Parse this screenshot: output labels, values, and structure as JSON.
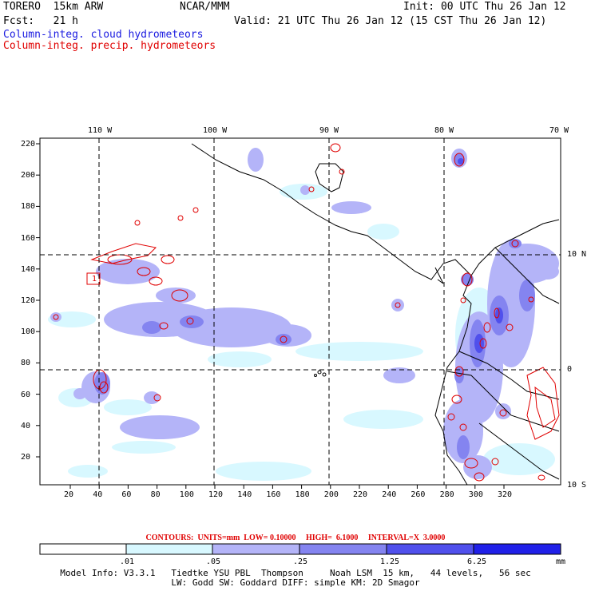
{
  "header": {
    "model": "TORERO  15km ARW",
    "org": "NCAR/MMM",
    "init": "Init: 00 UTC Thu 26 Jan 12",
    "fcst": "Fcst:   21 h",
    "valid": "Valid: 21 UTC Thu 26 Jan 12 (15 CST Thu 26 Jan 12)",
    "field1": "Column-integ. cloud hydrometeors",
    "field2": "Column-integ. precip. hydrometeors"
  },
  "axes": {
    "lon_labels": [
      "110 W",
      "100 W",
      "90 W",
      "80 W",
      "70 W"
    ],
    "lat_labels": [
      "10 N",
      "0",
      "10 S"
    ],
    "x_ticks": [
      "20",
      "40",
      "60",
      "80",
      "100",
      "120",
      "140",
      "160",
      "180",
      "200",
      "220",
      "240",
      "260",
      "280",
      "300",
      "320"
    ],
    "y_ticks": [
      "20",
      "40",
      "60",
      "80",
      "100",
      "120",
      "140",
      "160",
      "180",
      "200",
      "220"
    ],
    "box_label": "1"
  },
  "contour_info": {
    "text": "CONTOURS:  UNITS=mm  LOW= 0.10000     HIGH=  6.1000     INTERVAL=X  3.0000"
  },
  "colorbar": {
    "levels": [
      ".01",
      ".05",
      ".25",
      "1.25",
      "6.25"
    ],
    "unit": "mm",
    "colors": [
      "#ffffff",
      "#d8f8ff",
      "#b4b4f8",
      "#8484f0",
      "#5050ec",
      "#2020e8"
    ]
  },
  "footer": {
    "line1": "Model Info: V3.3.1   Tiedtke YSU PBL  Thompson     Noah LSM  15 km,   44 levels,   56 sec",
    "line2": "LW: Godd SW: Goddard DIFF: simple KM: 2D Smagor"
  }
}
